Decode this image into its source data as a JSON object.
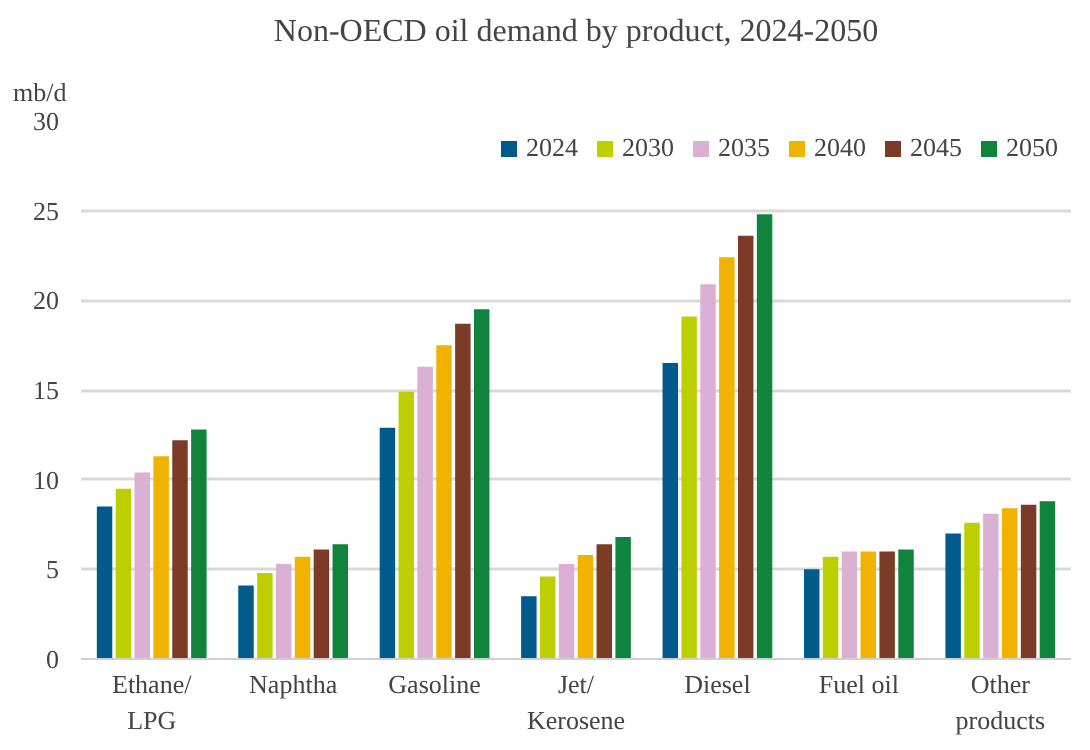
{
  "chart_data": {
    "type": "bar",
    "title": "Non-OECD oil demand by product, 2024-2050",
    "ylabel": "mb/d",
    "categories": [
      "Ethane/\nLPG",
      "Naphtha",
      "Gasoline",
      "Jet/\nKerosene",
      "Diesel",
      "Fuel oil",
      "Other\nproducts"
    ],
    "series": [
      {
        "name": "2024",
        "color": "#005a8c",
        "values": [
          8.5,
          4.1,
          12.9,
          3.5,
          16.5,
          5.0,
          7.0
        ]
      },
      {
        "name": "2030",
        "color": "#bdcf00",
        "values": [
          9.5,
          4.8,
          14.9,
          4.6,
          19.1,
          5.7,
          7.6
        ]
      },
      {
        "name": "2035",
        "color": "#dbb0d3",
        "values": [
          10.4,
          5.3,
          16.3,
          5.3,
          20.9,
          6.0,
          8.1
        ]
      },
      {
        "name": "2040",
        "color": "#f2b200",
        "values": [
          11.3,
          5.7,
          17.5,
          5.8,
          22.4,
          6.0,
          8.4
        ]
      },
      {
        "name": "2045",
        "color": "#7b3b27",
        "values": [
          12.2,
          6.1,
          18.7,
          6.4,
          23.6,
          6.0,
          8.6
        ]
      },
      {
        "name": "2050",
        "color": "#10833c",
        "values": [
          12.8,
          6.4,
          19.5,
          6.8,
          24.8,
          6.1,
          8.8
        ]
      }
    ],
    "ylim": [
      0,
      30
    ],
    "yticks": [
      0,
      5,
      10,
      15,
      20,
      25,
      30
    ],
    "grid": "y",
    "legend": "top right"
  }
}
